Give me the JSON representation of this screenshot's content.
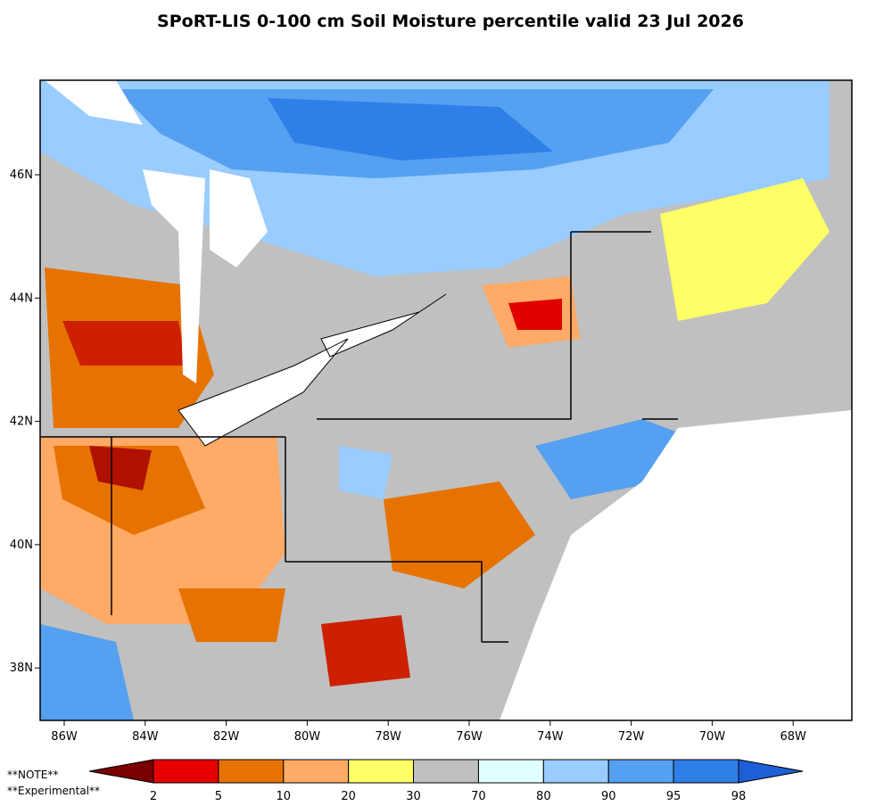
{
  "header": {
    "title": "SPoRT-LIS 0-100 cm Soil Moisture percentile valid 23 Jul 2026"
  },
  "map": {
    "lon_labels": [
      "86W",
      "84W",
      "82W",
      "80W",
      "78W",
      "76W",
      "74W",
      "72W",
      "70W",
      "68W"
    ],
    "lat_labels": [
      "46N",
      "44N",
      "42N",
      "40N",
      "38N"
    ]
  },
  "notes": [
    "**NOTE**",
    "**Experimental**"
  ],
  "colorbar": {
    "bounds": [
      2,
      5,
      10,
      20,
      30,
      70,
      80,
      90,
      95,
      98
    ],
    "colors": [
      "#7a0000",
      "#e60000",
      "#e67300",
      "#ffaa66",
      "#ffff66",
      "#c0c0c0",
      "#e0ffff",
      "#99ccff",
      "#55a0f0",
      "#2f7fe8",
      "#1e5fd8"
    ]
  }
}
